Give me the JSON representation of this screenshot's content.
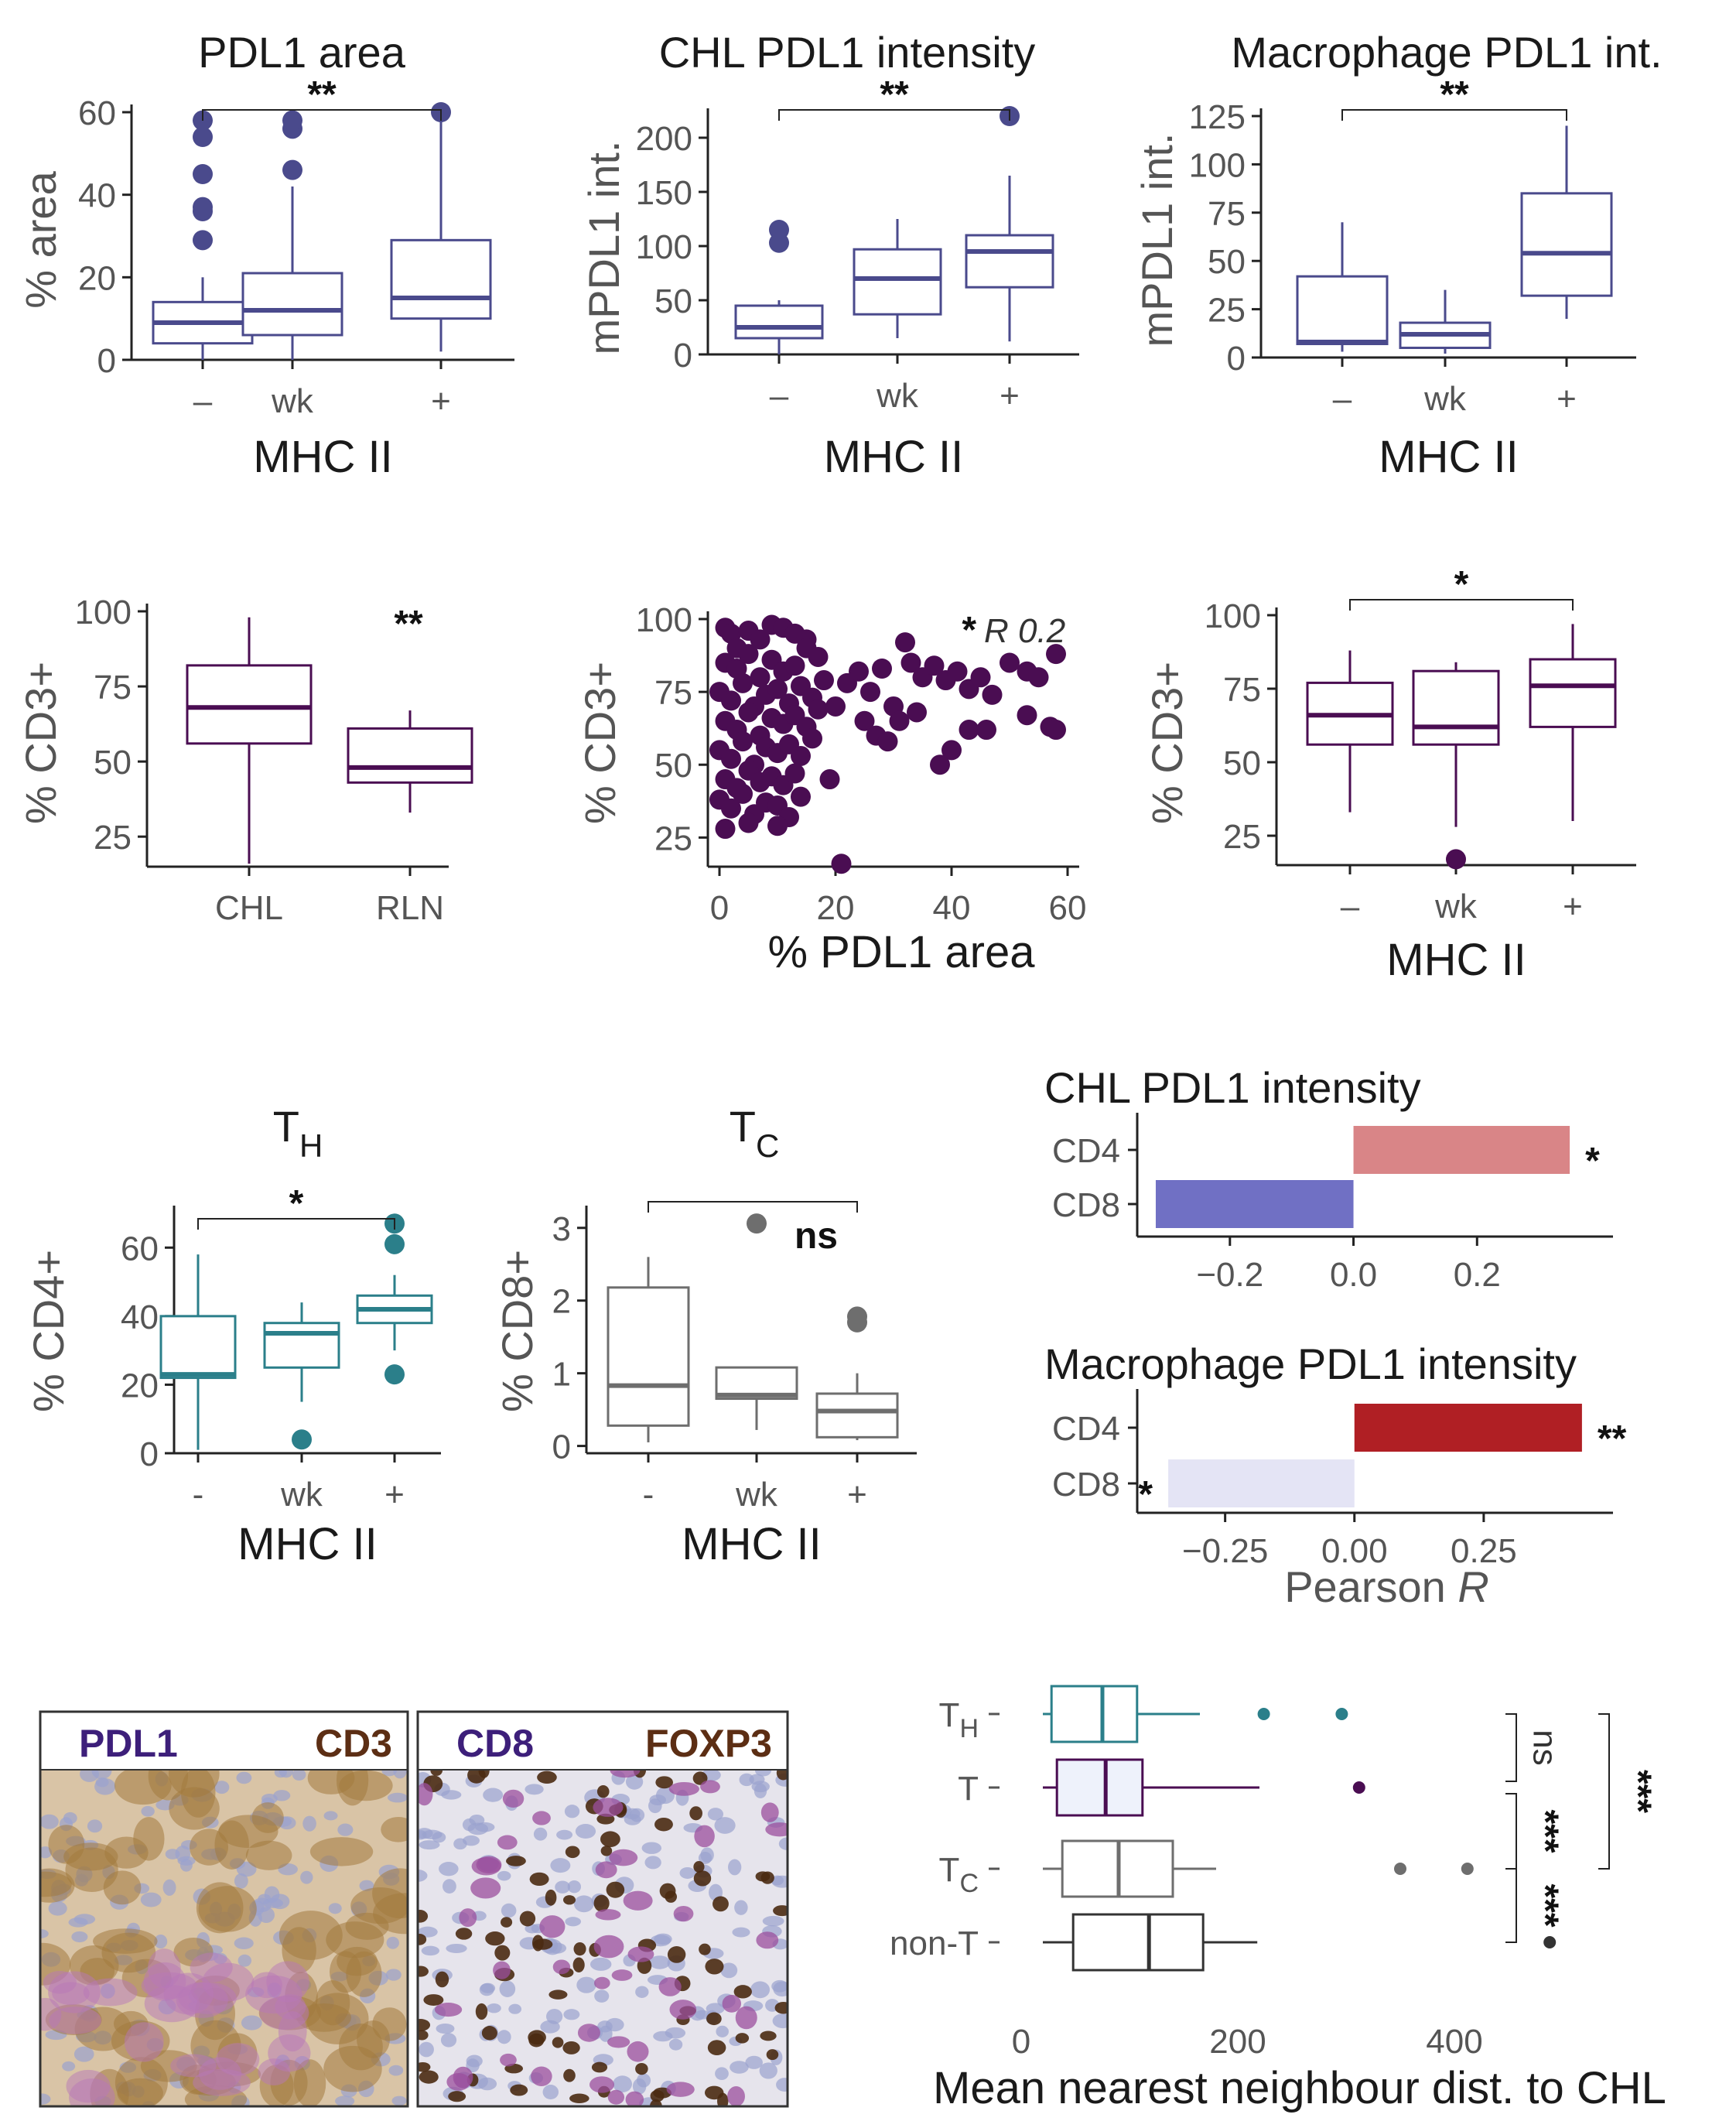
{
  "chart_data": [
    {
      "id": "pdl1-area",
      "type": "box",
      "title": "PDL1 area",
      "xlabel": "MHC II",
      "ylabel": "% area",
      "ylim": [
        0,
        60
      ],
      "yticks": [
        0,
        20,
        40,
        60
      ],
      "categories": [
        "–",
        "wk",
        "+"
      ],
      "boxes": [
        {
          "q1": 4,
          "median": 9,
          "q3": 14,
          "wlo": 0,
          "whi": 20,
          "outliers": [
            29,
            36,
            37,
            45,
            54,
            58
          ]
        },
        {
          "q1": 6,
          "median": 12,
          "q3": 21,
          "wlo": 0,
          "whi": 42,
          "outliers": [
            46,
            56,
            58
          ]
        },
        {
          "q1": 10,
          "median": 15,
          "q3": 29,
          "wlo": 2,
          "whi": 58,
          "outliers": [
            60
          ]
        }
      ],
      "color": "#4a4a8c",
      "brackets": [
        {
          "from": 0,
          "to": 2,
          "label": "**"
        }
      ]
    },
    {
      "id": "chl-pdl1-int",
      "type": "box",
      "title": "CHL PDL1 intensity",
      "xlabel": "MHC II",
      "ylabel": "mPDL1 int.",
      "ylim": [
        0,
        220
      ],
      "yticks": [
        0,
        50,
        100,
        150,
        200
      ],
      "categories": [
        "–",
        "wk",
        "+"
      ],
      "boxes": [
        {
          "q1": 15,
          "median": 25,
          "q3": 45,
          "wlo": 0,
          "whi": 50,
          "outliers": [
            103,
            115
          ]
        },
        {
          "q1": 37,
          "median": 70,
          "q3": 97,
          "wlo": 15,
          "whi": 125,
          "outliers": []
        },
        {
          "q1": 62,
          "median": 95,
          "q3": 110,
          "wlo": 12,
          "whi": 165,
          "outliers": [
            220
          ]
        }
      ],
      "color": "#4a4a8c",
      "brackets": [
        {
          "from": 0,
          "to": 2,
          "label": "**"
        }
      ]
    },
    {
      "id": "macro-pdl1-int",
      "type": "box",
      "title": "Macrophage PDL1 int.",
      "xlabel": "MHC II",
      "ylabel": "mPDL1 int.",
      "ylim": [
        0,
        125
      ],
      "yticks": [
        0,
        25,
        50,
        75,
        100,
        125
      ],
      "categories": [
        "–",
        "wk",
        "+"
      ],
      "boxes": [
        {
          "q1": 7,
          "median": 8,
          "q3": 42,
          "wlo": 3,
          "whi": 70,
          "outliers": []
        },
        {
          "q1": 5,
          "median": 12,
          "q3": 18,
          "wlo": 2,
          "whi": 35,
          "outliers": []
        },
        {
          "q1": 32,
          "median": 54,
          "q3": 85,
          "wlo": 20,
          "whi": 120,
          "outliers": []
        }
      ],
      "color": "#4a4a8c",
      "brackets": [
        {
          "from": 0,
          "to": 2,
          "label": "**"
        }
      ]
    },
    {
      "id": "cd3-chl-rln",
      "type": "box",
      "title": "",
      "xlabel": "",
      "ylabel": "% CD3+",
      "ylim": [
        15,
        100
      ],
      "yticks": [
        25,
        50,
        75,
        100
      ],
      "categories": [
        "CHL",
        "RLN"
      ],
      "boxes": [
        {
          "q1": 56,
          "median": 68,
          "q3": 82,
          "wlo": 16,
          "whi": 98,
          "outliers": []
        },
        {
          "q1": 43,
          "median": 48,
          "q3": 61,
          "wlo": 33,
          "whi": 67,
          "outliers": []
        }
      ],
      "color": "#4a0d52",
      "annotation": "**"
    },
    {
      "id": "cd3-vs-pdl1",
      "type": "scatter",
      "title": "",
      "xlabel": "% PDL1 area",
      "ylabel": "% CD3+",
      "xlim": [
        -2,
        62
      ],
      "ylim": [
        15,
        100
      ],
      "xticks": [
        0,
        20,
        40,
        60
      ],
      "yticks": [
        25,
        50,
        75,
        100
      ],
      "color": "#4a0d52",
      "annotation_sig": "*",
      "annotation_r": "R 0.2",
      "points": [
        [
          1,
          97
        ],
        [
          2,
          95
        ],
        [
          3,
          90
        ],
        [
          5,
          96
        ],
        [
          7,
          93
        ],
        [
          9,
          98
        ],
        [
          11,
          97
        ],
        [
          13,
          95
        ],
        [
          15,
          93
        ],
        [
          1,
          85
        ],
        [
          3,
          83
        ],
        [
          5,
          88
        ],
        [
          7,
          80
        ],
        [
          9,
          86
        ],
        [
          11,
          82
        ],
        [
          13,
          84
        ],
        [
          15,
          90
        ],
        [
          17,
          87
        ],
        [
          0,
          75
        ],
        [
          2,
          72
        ],
        [
          4,
          78
        ],
        [
          6,
          70
        ],
        [
          8,
          74
        ],
        [
          10,
          76
        ],
        [
          12,
          71
        ],
        [
          14,
          77
        ],
        [
          16,
          73
        ],
        [
          18,
          79
        ],
        [
          1,
          65
        ],
        [
          3,
          62
        ],
        [
          5,
          68
        ],
        [
          7,
          60
        ],
        [
          9,
          66
        ],
        [
          11,
          64
        ],
        [
          13,
          67
        ],
        [
          15,
          63
        ],
        [
          17,
          69
        ],
        [
          0,
          55
        ],
        [
          2,
          52
        ],
        [
          4,
          58
        ],
        [
          6,
          50
        ],
        [
          8,
          56
        ],
        [
          10,
          54
        ],
        [
          12,
          57
        ],
        [
          14,
          53
        ],
        [
          16,
          59
        ],
        [
          1,
          45
        ],
        [
          3,
          42
        ],
        [
          5,
          48
        ],
        [
          7,
          44
        ],
        [
          9,
          46
        ],
        [
          11,
          43
        ],
        [
          13,
          47
        ],
        [
          0,
          38
        ],
        [
          2,
          35
        ],
        [
          4,
          40
        ],
        [
          6,
          33
        ],
        [
          8,
          37
        ],
        [
          10,
          36
        ],
        [
          12,
          32
        ],
        [
          14,
          39
        ],
        [
          1,
          28
        ],
        [
          5,
          30
        ],
        [
          10,
          29
        ],
        [
          19,
          45
        ],
        [
          21,
          16
        ],
        [
          20,
          70
        ],
        [
          22,
          78
        ],
        [
          24,
          82
        ],
        [
          26,
          75
        ],
        [
          28,
          83
        ],
        [
          30,
          70
        ],
        [
          32,
          92
        ],
        [
          25,
          65
        ],
        [
          27,
          60
        ],
        [
          29,
          58
        ],
        [
          33,
          85
        ],
        [
          35,
          80
        ],
        [
          37,
          84
        ],
        [
          39,
          79
        ],
        [
          41,
          82
        ],
        [
          43,
          76
        ],
        [
          45,
          80
        ],
        [
          47,
          74
        ],
        [
          50,
          85
        ],
        [
          53,
          82
        ],
        [
          55,
          80
        ],
        [
          58,
          88
        ],
        [
          40,
          55
        ],
        [
          43,
          62
        ],
        [
          46,
          62
        ],
        [
          53,
          67
        ],
        [
          57,
          63
        ],
        [
          58,
          62
        ],
        [
          38,
          50
        ],
        [
          31,
          65
        ],
        [
          34,
          68
        ]
      ]
    },
    {
      "id": "cd3-mhc",
      "type": "box",
      "title": "",
      "xlabel": "MHC II",
      "ylabel": "% CD3+",
      "ylim": [
        15,
        100
      ],
      "yticks": [
        25,
        50,
        75,
        100
      ],
      "categories": [
        "–",
        "wk",
        "+"
      ],
      "boxes": [
        {
          "q1": 56,
          "median": 66,
          "q3": 77,
          "wlo": 33,
          "whi": 88,
          "outliers": []
        },
        {
          "q1": 56,
          "median": 62,
          "q3": 81,
          "wlo": 28,
          "whi": 84,
          "outliers": [
            17
          ]
        },
        {
          "q1": 62,
          "median": 76,
          "q3": 85,
          "wlo": 30,
          "whi": 97,
          "outliers": []
        }
      ],
      "color": "#4a0d52",
      "brackets": [
        {
          "from": 0,
          "to": 2,
          "label": "*"
        }
      ]
    },
    {
      "id": "th-cd4",
      "type": "box",
      "title": "T",
      "title_sub": "H",
      "xlabel": "MHC II",
      "ylabel": "% CD4+",
      "ylim": [
        0,
        70
      ],
      "yticks": [
        0,
        20,
        40,
        60
      ],
      "categories": [
        "-",
        "wk",
        "+"
      ],
      "boxes": [
        {
          "q1": 22,
          "median": 23,
          "q3": 40,
          "wlo": 1,
          "whi": 58,
          "outliers": []
        },
        {
          "q1": 25,
          "median": 35,
          "q3": 38,
          "wlo": 15,
          "whi": 44,
          "outliers": [
            4
          ]
        },
        {
          "q1": 38,
          "median": 42,
          "q3": 46,
          "wlo": 30,
          "whi": 52,
          "outliers": [
            23,
            61,
            67
          ]
        }
      ],
      "color": "#2b7f8a",
      "brackets": [
        {
          "from": 0,
          "to": 2,
          "label": "*"
        }
      ]
    },
    {
      "id": "tc-cd8",
      "type": "box",
      "title": "T",
      "title_sub": "C",
      "xlabel": "MHC II",
      "ylabel": "% CD8+",
      "ylim": [
        -0.1,
        3.2
      ],
      "yticks": [
        0,
        1,
        2,
        3
      ],
      "categories": [
        "-",
        "wk",
        "+"
      ],
      "boxes": [
        {
          "q1": 0.28,
          "median": 0.83,
          "q3": 2.18,
          "wlo": 0.05,
          "whi": 2.6,
          "outliers": []
        },
        {
          "q1": 0.65,
          "median": 0.7,
          "q3": 1.08,
          "wlo": 0.22,
          "whi": 1.08,
          "outliers": [
            3.06
          ]
        },
        {
          "q1": 0.12,
          "median": 0.48,
          "q3": 0.72,
          "wlo": 0.08,
          "whi": 1.0,
          "outliers": [
            1.7,
            1.78
          ]
        }
      ],
      "color": "#6e6e6e",
      "brackets": [
        {
          "from": 0,
          "to": 2,
          "label": "ns"
        }
      ]
    },
    {
      "id": "corr-chl",
      "type": "bar",
      "orientation": "horizontal",
      "title": "CHL PDL1 intensity",
      "categories": [
        "CD4",
        "CD8"
      ],
      "values": [
        0.35,
        -0.32
      ],
      "xlim": [
        -0.35,
        0.42
      ],
      "xticks": [
        -0.2,
        0.0,
        0.2
      ],
      "xticklabels": [
        "−0.2",
        "0.0",
        "0.2"
      ],
      "colors": [
        "#d98587",
        "#7070c4"
      ],
      "sig": [
        "*",
        ""
      ]
    },
    {
      "id": "corr-macro",
      "type": "bar",
      "orientation": "horizontal",
      "title": "Macrophage PDL1 intensity",
      "categories": [
        "CD4",
        "CD8"
      ],
      "values": [
        0.44,
        -0.36
      ],
      "xlim": [
        -0.42,
        0.5
      ],
      "xticks": [
        -0.25,
        0.0,
        0.25
      ],
      "xticklabels": [
        "−0.25",
        "0.00",
        "0.25"
      ],
      "colors": [
        "#b01f24",
        "#e4e4f5"
      ],
      "sig": [
        "**",
        "*"
      ],
      "xlabel": "Pearson",
      "xlabel_italic": "R"
    },
    {
      "id": "nn-dist",
      "type": "box",
      "orientation": "horizontal",
      "title": "",
      "xlabel": "Mean nearest neighbour dist. to CHL",
      "xlim": [
        0,
        500
      ],
      "xticks": [
        0,
        200,
        400
      ],
      "categories": [
        {
          "main": "T",
          "sub": "H"
        },
        {
          "main": "T",
          "sub": ""
        },
        {
          "main": "T",
          "sub": "C"
        },
        {
          "main": "non-T",
          "sub": ""
        }
      ],
      "colors": [
        "#2b7f8a",
        "#4a0d52",
        "#6e6e6e",
        "#333333"
      ],
      "fills": [
        "#ffffff",
        "#eef2fb",
        "#ffffff",
        "#ffffff"
      ],
      "boxes": [
        {
          "q1": 28,
          "median": 75,
          "q3": 107,
          "wlo": 0,
          "whi": 165,
          "outliers": [
            224,
            296
          ]
        },
        {
          "q1": 33,
          "median": 78,
          "q3": 112,
          "wlo": 0,
          "whi": 220,
          "outliers": [
            312
          ]
        },
        {
          "q1": 38,
          "median": 90,
          "q3": 140,
          "wlo": 0,
          "whi": 180,
          "outliers": [
            350,
            412
          ]
        },
        {
          "q1": 48,
          "median": 118,
          "q3": 168,
          "wlo": 0,
          "whi": 218,
          "outliers": [
            488
          ]
        }
      ],
      "sig_brackets": [
        {
          "from": 0,
          "to": 1,
          "label": "ns"
        },
        {
          "from": 1,
          "to": 2,
          "label": "***"
        },
        {
          "from": 2,
          "to": 3,
          "label": "***"
        },
        {
          "from": 0,
          "to": 2,
          "label": "***"
        }
      ]
    }
  ],
  "micrographs": [
    {
      "label_left": "PDL1",
      "label_right": "CD3",
      "color_left": "#3d1f7a",
      "color_right": "#5c2e14"
    },
    {
      "label_left": "CD8",
      "label_right": "FOXP3",
      "color_left": "#3d1f7a",
      "color_right": "#5c2e14"
    }
  ]
}
